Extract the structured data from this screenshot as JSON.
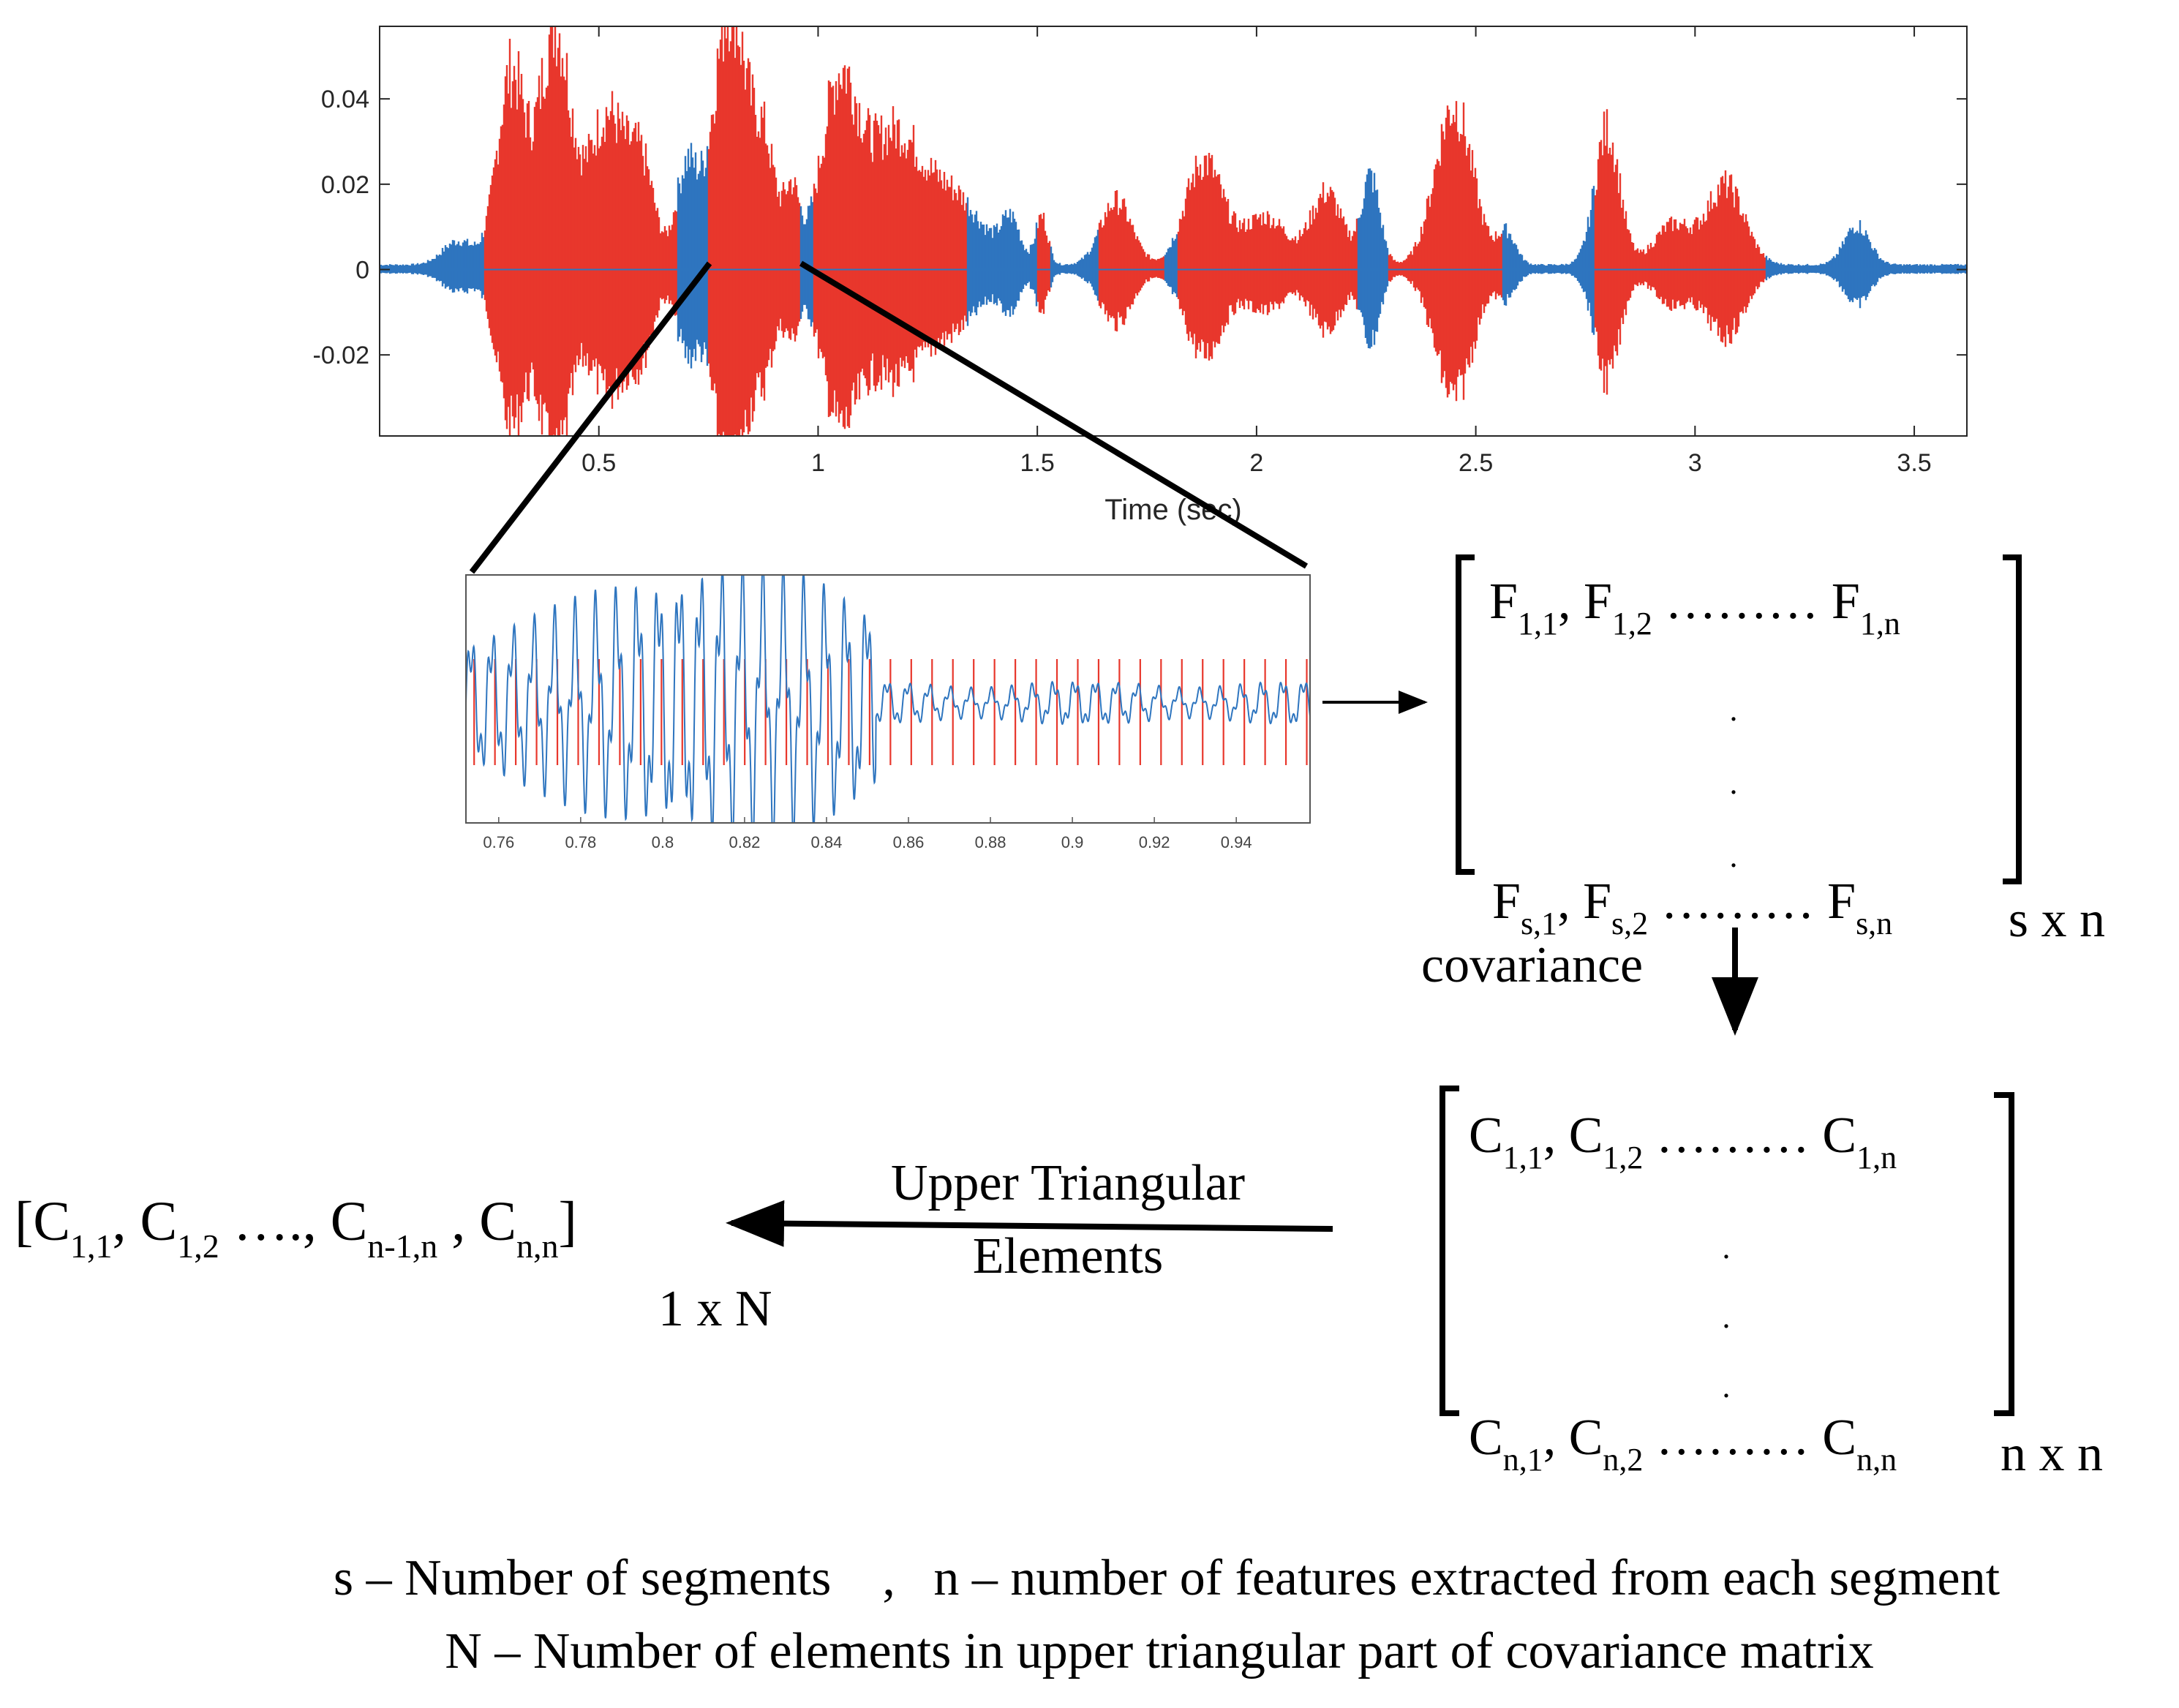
{
  "waveform_plot": {
    "xlabel": "Time (sec)",
    "x_ticks": [
      "0.5",
      "1",
      "1.5",
      "2",
      "2.5",
      "3",
      "3.5"
    ],
    "y_ticks": [
      "0.04",
      "0.02",
      "0",
      "-0.02"
    ],
    "xlim": [
      0,
      3.62
    ],
    "ylim": [
      -0.039,
      0.057
    ],
    "colors": {
      "unvoiced": "#2e75bf",
      "voiced": "#e8372c"
    },
    "voiced_segments_sec": [
      [
        0.24,
        0.68
      ],
      [
        0.75,
        0.96
      ],
      [
        0.99,
        1.34
      ],
      [
        1.5,
        1.53
      ],
      [
        1.64,
        1.79
      ],
      [
        1.82,
        2.23
      ],
      [
        2.3,
        2.56
      ],
      [
        2.77,
        3.16
      ]
    ]
  },
  "zoom_plot": {
    "x_ticks": [
      "0.76",
      "0.78",
      "0.8",
      "0.82",
      "0.84",
      "0.86",
      "0.88",
      "0.9",
      "0.92",
      "0.94"
    ],
    "xlim": [
      0.752,
      0.958
    ]
  },
  "feature_matrix": {
    "row1": {
      "a": "F",
      "a_sub": "1,1",
      "b": "F",
      "b_sub": "1,2",
      "dots": "………",
      "c": "F",
      "c_sub": "1,n"
    },
    "rowN": {
      "a": "F",
      "a_sub": "s,1",
      "b": "F",
      "b_sub": "s,2",
      "dots": "………",
      "c": "F",
      "c_sub": "s,n"
    },
    "vdots": [
      ".",
      ".",
      "."
    ],
    "size_label": "s x n"
  },
  "covariance_arrow_label": "covariance",
  "cov_matrix": {
    "row1": {
      "a": "C",
      "a_sub": "1,1",
      "b": "C",
      "b_sub": "1,2",
      "dots": "………",
      "c": "C",
      "c_sub": "1,n"
    },
    "rowN": {
      "a": "C",
      "a_sub": "n,1",
      "b": "C",
      "b_sub": "n,2",
      "dots": "………",
      "c": "C",
      "c_sub": "n,n"
    },
    "vdots": [
      ".",
      ".",
      "."
    ],
    "size_label": "n x n"
  },
  "upper_arrow_label": {
    "line1": "Upper Triangular",
    "line2": "Elements"
  },
  "vector": {
    "open": "[",
    "e1": "C",
    "e1_sub": "1,1",
    "e2": "C",
    "e2_sub": "1,2",
    "ellipsis": "….,",
    "e3": "C",
    "e3_sub": "n-1,n",
    "e4": "C",
    "e4_sub": "n,n",
    "close": "]",
    "size_label": "1 x N"
  },
  "footnote": {
    "line1": "s – Number of segments    ,   n – number of features extracted from each segment",
    "line2": "N – Number of elements in upper triangular part of covariance matrix"
  }
}
